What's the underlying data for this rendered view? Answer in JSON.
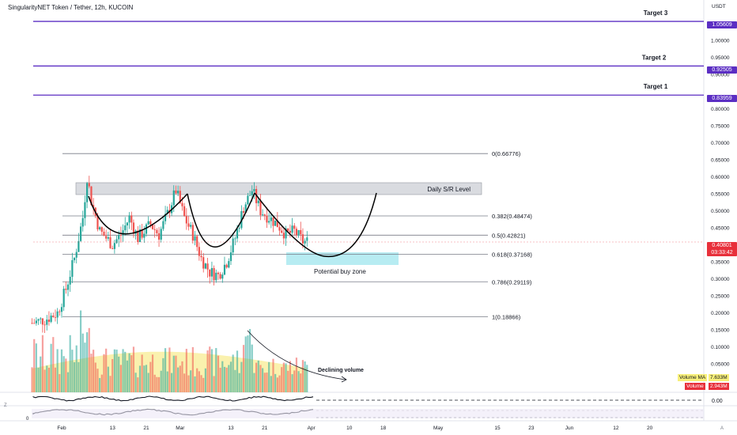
{
  "header": {
    "title": "SingularityNET Token / Tether, 12h, KUCOIN",
    "currency": "USDT"
  },
  "colors": {
    "target": "#5b2ec3",
    "up": "#26a69a",
    "down": "#ef5350",
    "fib_line": "#787b86",
    "buy_zone": "#b7ecf2",
    "sr_zone": "#c9ccd3",
    "vol_ma": "#f9ee9a",
    "price_now": "#e8303b"
  },
  "targets": [
    {
      "label": "Target 3",
      "price": "1.05609",
      "value": 1.05609
    },
    {
      "label": "Target 2",
      "price": "0.92505",
      "value": 0.92505
    },
    {
      "label": "Target 1",
      "price": "0.83959",
      "value": 0.83959
    }
  ],
  "fib_levels": [
    {
      "label": "0(0.66776)",
      "value": 0.66776
    },
    {
      "label": "0.382(0.48474)",
      "value": 0.48474
    },
    {
      "label": "0.5(0.42821)",
      "value": 0.42821
    },
    {
      "label": "0.618(0.37168)",
      "value": 0.37168
    },
    {
      "label": "0.786(0.29119)",
      "value": 0.29119
    },
    {
      "label": "1(0.18866)",
      "value": 0.18866
    }
  ],
  "annotations": {
    "sr_label": "Daily S/R Level",
    "buy_zone_label": "Potential buy zone",
    "volume_label": "Declining volume"
  },
  "current_price": {
    "price": "0.40801",
    "countdown": "03:33:42",
    "value": 0.40801
  },
  "volume_legend": {
    "ma_label": "Volume MA",
    "ma_value": "7.633M",
    "vol_label": "Volume",
    "vol_value": "2.943M"
  },
  "oscillator": {
    "zero_label": "0.00",
    "left_label": "0"
  },
  "axis_left_marks": [
    "Z",
    "0"
  ],
  "axis_right_corner": "A",
  "chart_data": {
    "type": "candlestick",
    "y_ticks": [
      "1.00000",
      "0.95000",
      "0.90000",
      "0.80000",
      "0.75000",
      "0.70000",
      "0.65000",
      "0.60000",
      "0.55000",
      "0.50000",
      "0.45000",
      "0.35000",
      "0.30000",
      "0.25000",
      "0.20000",
      "0.15000",
      "0.10000",
      "0.05000"
    ],
    "y_tick_values": [
      1.0,
      0.95,
      0.9,
      0.8,
      0.75,
      0.7,
      0.65,
      0.6,
      0.55,
      0.5,
      0.45,
      0.35,
      0.3,
      0.25,
      0.2,
      0.15,
      0.1,
      0.05
    ],
    "x_ticks": [
      "Feb",
      "13",
      "21",
      "Mar",
      "13",
      "21",
      "Apr",
      "10",
      "18",
      "May",
      "15",
      "23",
      "Jun",
      "12",
      "20"
    ],
    "x_tick_dates": [
      "2023-02-01",
      "2023-02-13",
      "2023-02-21",
      "2023-03-01",
      "2023-03-13",
      "2023-03-21",
      "2023-04-01",
      "2023-04-10",
      "2023-04-18",
      "2023-05-01",
      "2023-05-15",
      "2023-05-23",
      "2023-06-01",
      "2023-06-12",
      "2023-06-20"
    ],
    "ylim": [
      0,
      1.1
    ],
    "price_path": [
      [
        "2023-01-25",
        0.17
      ],
      [
        "2023-01-28",
        0.18
      ],
      [
        "2023-01-31",
        0.2
      ],
      [
        "2023-02-02",
        0.27
      ],
      [
        "2023-02-04",
        0.36
      ],
      [
        "2023-02-06",
        0.48
      ],
      [
        "2023-02-07",
        0.6
      ],
      [
        "2023-02-08",
        0.53
      ],
      [
        "2023-02-10",
        0.44
      ],
      [
        "2023-02-13",
        0.4
      ],
      [
        "2023-02-15",
        0.43
      ],
      [
        "2023-02-17",
        0.48
      ],
      [
        "2023-02-19",
        0.42
      ],
      [
        "2023-02-22",
        0.46
      ],
      [
        "2023-02-24",
        0.43
      ],
      [
        "2023-02-26",
        0.49
      ],
      [
        "2023-02-28",
        0.56
      ],
      [
        "2023-03-02",
        0.48
      ],
      [
        "2023-03-04",
        0.43
      ],
      [
        "2023-03-06",
        0.36
      ],
      [
        "2023-03-08",
        0.32
      ],
      [
        "2023-03-10",
        0.31
      ],
      [
        "2023-03-12",
        0.35
      ],
      [
        "2023-03-14",
        0.42
      ],
      [
        "2023-03-16",
        0.51
      ],
      [
        "2023-03-18",
        0.56
      ],
      [
        "2023-03-20",
        0.5
      ],
      [
        "2023-03-22",
        0.48
      ],
      [
        "2023-03-24",
        0.46
      ],
      [
        "2023-03-26",
        0.43
      ],
      [
        "2023-03-28",
        0.44
      ],
      [
        "2023-03-30",
        0.41
      ],
      [
        "2023-03-31",
        0.408
      ]
    ],
    "projection_path": [
      [
        "2023-03-31",
        0.39
      ],
      [
        "2023-04-03",
        0.37
      ],
      [
        "2023-04-06",
        0.38
      ],
      [
        "2023-04-09",
        0.41
      ],
      [
        "2023-04-12",
        0.46
      ],
      [
        "2023-04-15",
        0.52
      ],
      [
        "2023-04-17",
        0.555
      ]
    ],
    "volume_trend": "declining"
  }
}
